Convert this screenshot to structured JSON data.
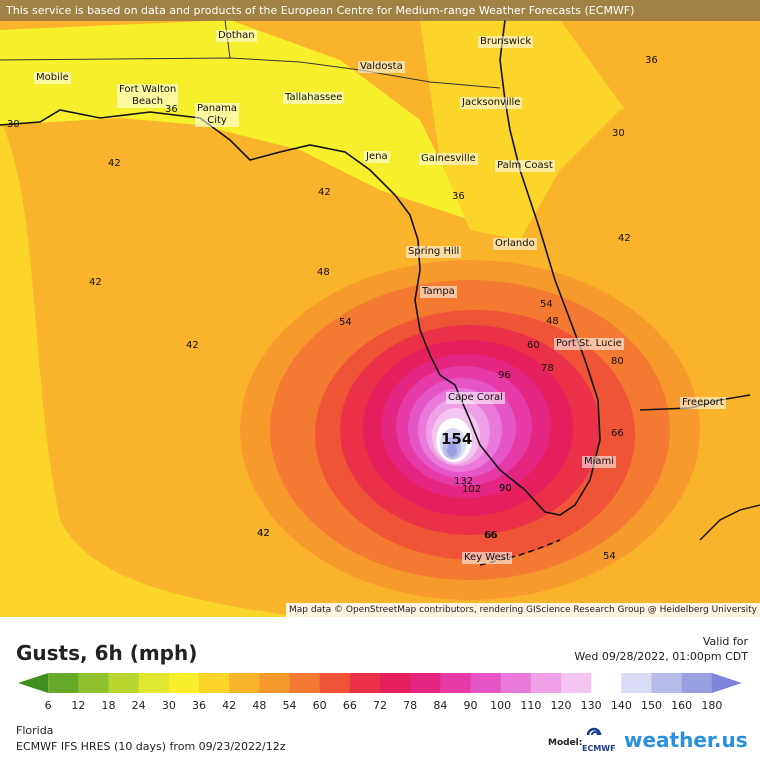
{
  "banner": "This service is based on data and products of the European Centre for Medium-range Weather Forecasts (ECMWF)",
  "credit": "Map data © OpenStreetMap contributors, rendering GIScience Research Group @ Heidelberg University",
  "cities": [
    {
      "name": "Dothan"
    },
    {
      "name": "Brunswick"
    },
    {
      "name": "Mobile"
    },
    {
      "name": "Valdosta"
    },
    {
      "name": "Fort Walton\nBeach"
    },
    {
      "name": "Tallahassee"
    },
    {
      "name": "Panama\nCity"
    },
    {
      "name": "Jacksonville"
    },
    {
      "name": "Jena"
    },
    {
      "name": "Gainesville"
    },
    {
      "name": "Palm Coast"
    },
    {
      "name": "Spring Hill"
    },
    {
      "name": "Orlando"
    },
    {
      "name": "Tampa"
    },
    {
      "name": "Port St. Lucie"
    },
    {
      "name": "Cape Coral"
    },
    {
      "name": "Freeport"
    },
    {
      "name": "Miami"
    },
    {
      "name": "Key West"
    }
  ],
  "contour_labels": [
    "36",
    "36",
    "30",
    "30",
    "42",
    "42",
    "36",
    "42",
    "48",
    "42",
    "54",
    "42",
    "42",
    "42",
    "48",
    "60",
    "78",
    "80",
    "66",
    "66",
    "96",
    "90",
    "102",
    "132",
    "90",
    "66",
    "54",
    "42",
    "54"
  ],
  "max_value": "154",
  "title": "Gusts, 6h (mph)",
  "valid_label": "Valid for",
  "valid_time": "Wed 09/28/2022, 01:00pm CDT",
  "legend": {
    "ticks": [
      "6",
      "12",
      "18",
      "24",
      "30",
      "36",
      "42",
      "48",
      "54",
      "60",
      "66",
      "72",
      "78",
      "84",
      "90",
      "100",
      "110",
      "120",
      "130",
      "140",
      "150",
      "160",
      "180"
    ],
    "colors": [
      "#3f8f1f",
      "#66a82a",
      "#8fc22e",
      "#b8d62f",
      "#dfe730",
      "#f7ef2b",
      "#fbd52a",
      "#f9b42b",
      "#f79a2d",
      "#f47a32",
      "#ef5437",
      "#ea3147",
      "#e6205e",
      "#e42582",
      "#e63aa6",
      "#e655c6",
      "#ea7ad9",
      "#efa0e6",
      "#f4c5f0",
      "#ffffff",
      "#d8dbf3",
      "#b8bcea",
      "#9a9fe2",
      "#7e84da"
    ]
  },
  "region": "Florida",
  "model": "ECMWF IFS HRES (10 days) from 09/23/2022/12z",
  "model_label": "Model:",
  "ecmwf_logo": "ECMWF",
  "brand": "weather.us",
  "icons": {
    "model_logo": "ecmwf-logo-icon",
    "brand_logo": "weather-us-logo-icon"
  }
}
